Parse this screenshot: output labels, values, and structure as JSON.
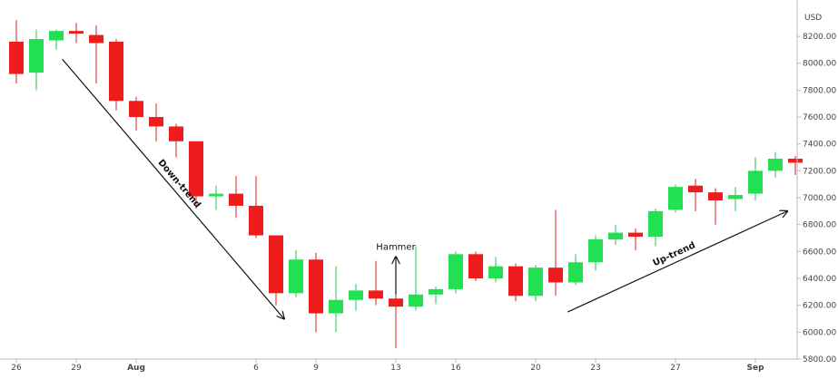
{
  "chart_data": {
    "type": "candlestick",
    "currency": "USD",
    "ylim": [
      5800,
      8450
    ],
    "y_ticks": [
      5800,
      6000,
      6200,
      6400,
      6600,
      6800,
      7000,
      7200,
      7400,
      7600,
      7800,
      8000,
      8200
    ],
    "y_tick_labels": [
      "5800.00",
      "6000.00",
      "6200.00",
      "6400.00",
      "6600.00",
      "6800.00",
      "7000.00",
      "7200.00",
      "7400.00",
      "7600.00",
      "7800.00",
      "8000.00",
      "8200.00"
    ],
    "x_tick_labels": [
      "26",
      "29",
      "Aug",
      "6",
      "9",
      "13",
      "16",
      "20",
      "23",
      "27",
      "Sep"
    ],
    "x_tick_index": [
      0,
      3,
      6,
      12,
      15,
      19,
      22,
      26,
      29,
      33,
      37
    ],
    "candles": [
      {
        "o": 8160,
        "h": 8320,
        "l": 7850,
        "c": 7920
      },
      {
        "o": 7930,
        "h": 8250,
        "l": 7800,
        "c": 8180
      },
      {
        "o": 8170,
        "h": 8250,
        "l": 8100,
        "c": 8240
      },
      {
        "o": 8240,
        "h": 8300,
        "l": 8150,
        "c": 8220
      },
      {
        "o": 8210,
        "h": 8280,
        "l": 7850,
        "c": 8150
      },
      {
        "o": 8160,
        "h": 8180,
        "l": 7650,
        "c": 7720
      },
      {
        "o": 7720,
        "h": 7750,
        "l": 7500,
        "c": 7600
      },
      {
        "o": 7600,
        "h": 7700,
        "l": 7420,
        "c": 7530
      },
      {
        "o": 7530,
        "h": 7550,
        "l": 7300,
        "c": 7420
      },
      {
        "o": 7420,
        "h": 7420,
        "l": 6920,
        "c": 7010
      },
      {
        "o": 7010,
        "h": 7090,
        "l": 6910,
        "c": 7030
      },
      {
        "o": 7030,
        "h": 7160,
        "l": 6850,
        "c": 6940
      },
      {
        "o": 6940,
        "h": 7160,
        "l": 6700,
        "c": 6720
      },
      {
        "o": 6720,
        "h": 6720,
        "l": 6200,
        "c": 6290
      },
      {
        "o": 6290,
        "h": 6610,
        "l": 6260,
        "c": 6540
      },
      {
        "o": 6540,
        "h": 6590,
        "l": 6000,
        "c": 6140
      },
      {
        "o": 6140,
        "h": 6490,
        "l": 6000,
        "c": 6240
      },
      {
        "o": 6240,
        "h": 6360,
        "l": 6160,
        "c": 6310
      },
      {
        "o": 6310,
        "h": 6530,
        "l": 6200,
        "c": 6250
      },
      {
        "o": 6250,
        "h": 6280,
        "l": 5880,
        "c": 6190
      },
      {
        "o": 6190,
        "h": 6640,
        "l": 6160,
        "c": 6280
      },
      {
        "o": 6280,
        "h": 6340,
        "l": 6210,
        "c": 6320
      },
      {
        "o": 6320,
        "h": 6600,
        "l": 6290,
        "c": 6580
      },
      {
        "o": 6580,
        "h": 6600,
        "l": 6380,
        "c": 6400
      },
      {
        "o": 6400,
        "h": 6560,
        "l": 6370,
        "c": 6490
      },
      {
        "o": 6490,
        "h": 6510,
        "l": 6230,
        "c": 6270
      },
      {
        "o": 6270,
        "h": 6500,
        "l": 6230,
        "c": 6480
      },
      {
        "o": 6480,
        "h": 6910,
        "l": 6270,
        "c": 6370
      },
      {
        "o": 6370,
        "h": 6580,
        "l": 6350,
        "c": 6520
      },
      {
        "o": 6520,
        "h": 6720,
        "l": 6460,
        "c": 6690
      },
      {
        "o": 6690,
        "h": 6800,
        "l": 6650,
        "c": 6740
      },
      {
        "o": 6740,
        "h": 6770,
        "l": 6610,
        "c": 6710
      },
      {
        "o": 6710,
        "h": 6920,
        "l": 6640,
        "c": 6900
      },
      {
        "o": 6910,
        "h": 7100,
        "l": 6890,
        "c": 7080
      },
      {
        "o": 7090,
        "h": 7140,
        "l": 6900,
        "c": 7040
      },
      {
        "o": 7040,
        "h": 7070,
        "l": 6800,
        "c": 6980
      },
      {
        "o": 6990,
        "h": 7080,
        "l": 6900,
        "c": 7020
      },
      {
        "o": 7030,
        "h": 7300,
        "l": 6980,
        "c": 7200
      },
      {
        "o": 7200,
        "h": 7340,
        "l": 7150,
        "c": 7290
      },
      {
        "o": 7290,
        "h": 7310,
        "l": 7170,
        "c": 7260
      }
    ],
    "annotations": [
      {
        "label": "Down-trend",
        "from": {
          "i": 2.3,
          "v": 8030
        },
        "to": {
          "i": 13.4,
          "v": 6100
        }
      },
      {
        "label": "Hammer",
        "at_index": 19,
        "from_value": 6280,
        "to_value": 6560
      },
      {
        "label": "Up-trend",
        "from": {
          "i": 27.6,
          "v": 6150
        },
        "to": {
          "i": 38.6,
          "v": 6900
        }
      }
    ],
    "colors": {
      "up": "#22e052",
      "down": "#ee1c1c",
      "wick_up": "#22c44a",
      "wick_down": "#e01818",
      "axis": "#bbbbbb"
    }
  }
}
